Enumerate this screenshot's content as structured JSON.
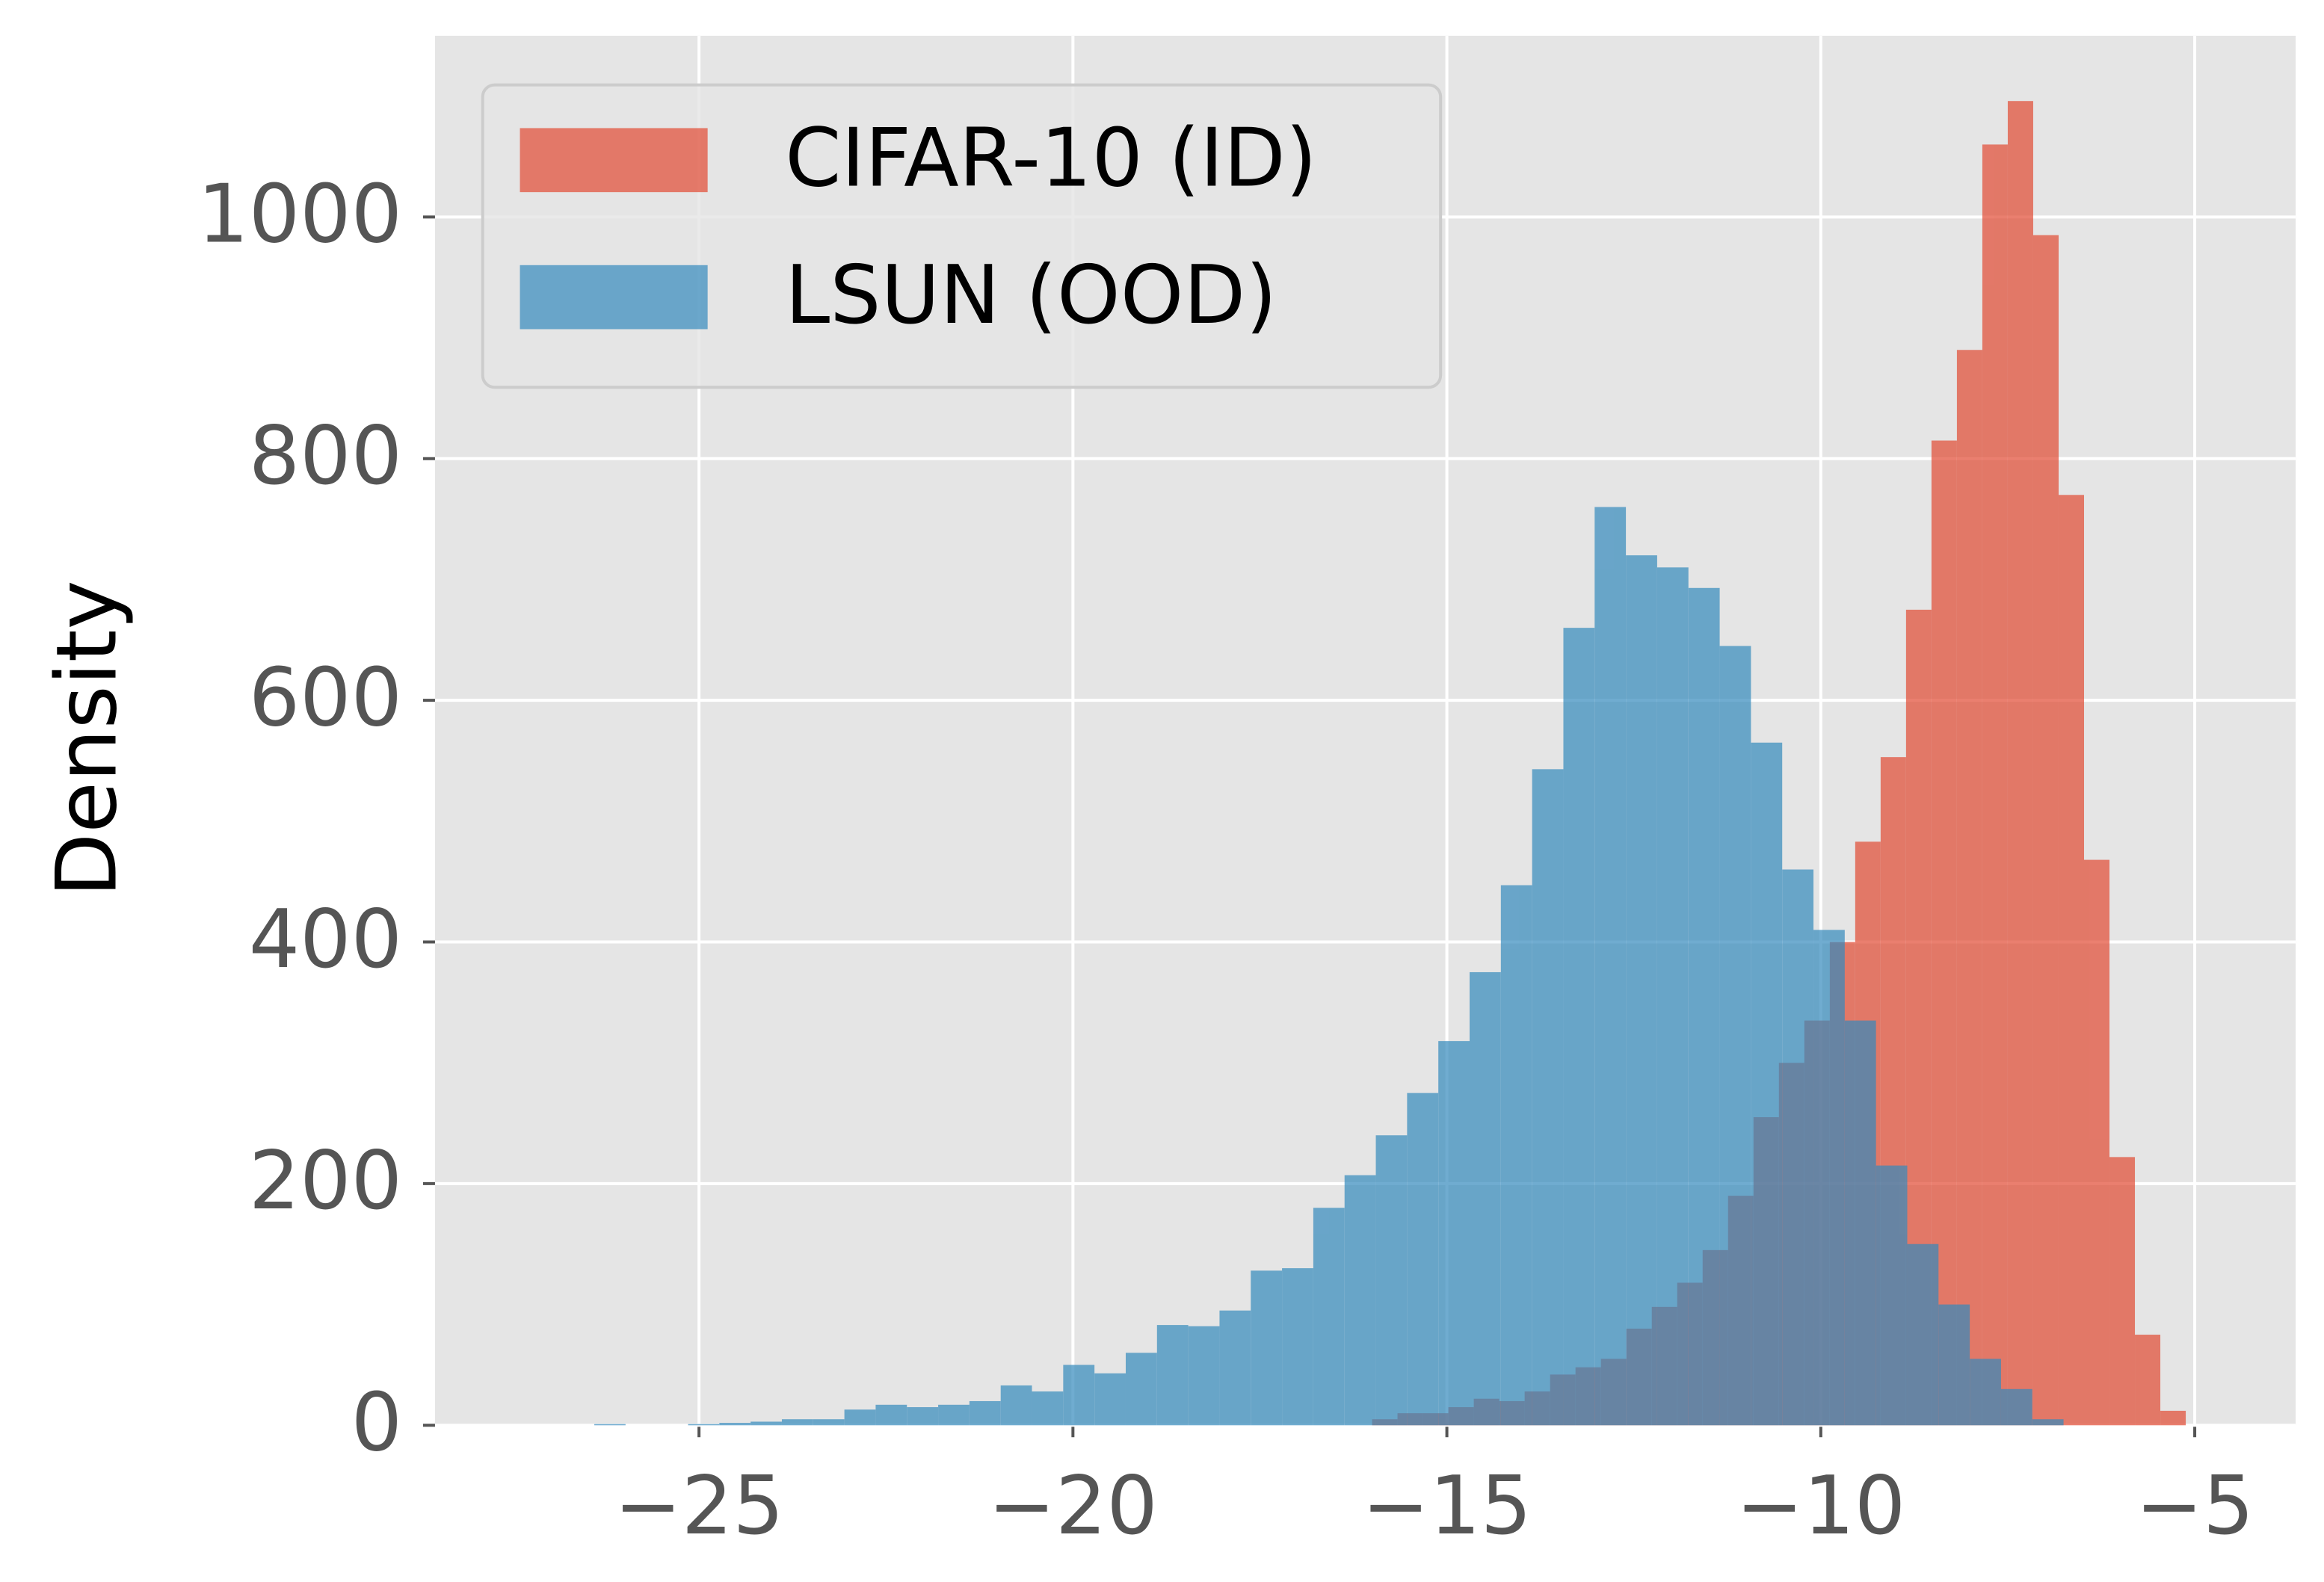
{
  "chart_data": {
    "type": "histogram",
    "ylabel": "Density",
    "xlim": [
      -28.53,
      -3.65
    ],
    "ylim": [
      0,
      1150
    ],
    "xticks": [
      {
        "value": -25,
        "label": "−25"
      },
      {
        "value": -20,
        "label": "−20"
      },
      {
        "value": -15,
        "label": "−15"
      },
      {
        "value": -10,
        "label": "−10"
      },
      {
        "value": -5,
        "label": "−5"
      }
    ],
    "yticks": [
      0,
      200,
      400,
      600,
      800,
      1000
    ],
    "grid": true,
    "legend": "upper left",
    "series": [
      {
        "name": "CIFAR-10 (ID)",
        "color": "#E24A33",
        "bins": [
          -16,
          -15.66,
          -15.32,
          -14.98,
          -14.64,
          -14.3,
          -13.96,
          -13.62,
          -13.28,
          -12.94,
          -12.6,
          -12.26,
          -11.92,
          -11.58,
          -11.24,
          -10.9,
          -10.56,
          -10.22,
          -9.88,
          -9.54,
          -9.2,
          -8.86,
          -8.52,
          -8.18,
          -7.84,
          -7.5,
          -7.16,
          -6.82,
          -6.48,
          -6.14,
          -5.8,
          -5.46,
          -5.12
        ],
        "values": [
          5,
          10,
          10,
          15,
          22,
          20,
          28,
          42,
          48,
          55,
          80,
          98,
          118,
          145,
          190,
          255,
          300,
          335,
          400,
          483,
          553,
          675,
          815,
          890,
          1060,
          1096,
          985,
          770,
          468,
          222,
          75,
          12
        ]
      },
      {
        "name": "LSUN (OOD)",
        "color": "#348ABD",
        "bins": [
          -26.4,
          -25.982,
          -25.564,
          -25.146,
          -24.728,
          -24.31,
          -23.892,
          -23.474,
          -23.056,
          -22.638,
          -22.22,
          -21.802,
          -21.384,
          -20.966,
          -20.548,
          -20.13,
          -19.712,
          -19.294,
          -18.876,
          -18.458,
          -18.04,
          -17.622,
          -17.204,
          -16.786,
          -16.368,
          -15.95,
          -15.532,
          -15.114,
          -14.696,
          -14.278,
          -13.86,
          -13.442,
          -13.024,
          -12.606,
          -12.188,
          -11.77,
          -11.352,
          -10.934,
          -10.516,
          -10.098,
          -9.68,
          -9.262,
          -8.844,
          -8.426,
          -8.008,
          -7.59,
          -7.172,
          -6.754
        ],
        "values": [
          1,
          0,
          0,
          1,
          2,
          3,
          5,
          5,
          13,
          17,
          15,
          17,
          20,
          33,
          28,
          50,
          43,
          60,
          83,
          82,
          95,
          128,
          130,
          180,
          207,
          240,
          275,
          318,
          375,
          447,
          543,
          660,
          760,
          720,
          710,
          693,
          645,
          565,
          460,
          410,
          335,
          215,
          150,
          100,
          55,
          30,
          5
        ]
      }
    ]
  }
}
